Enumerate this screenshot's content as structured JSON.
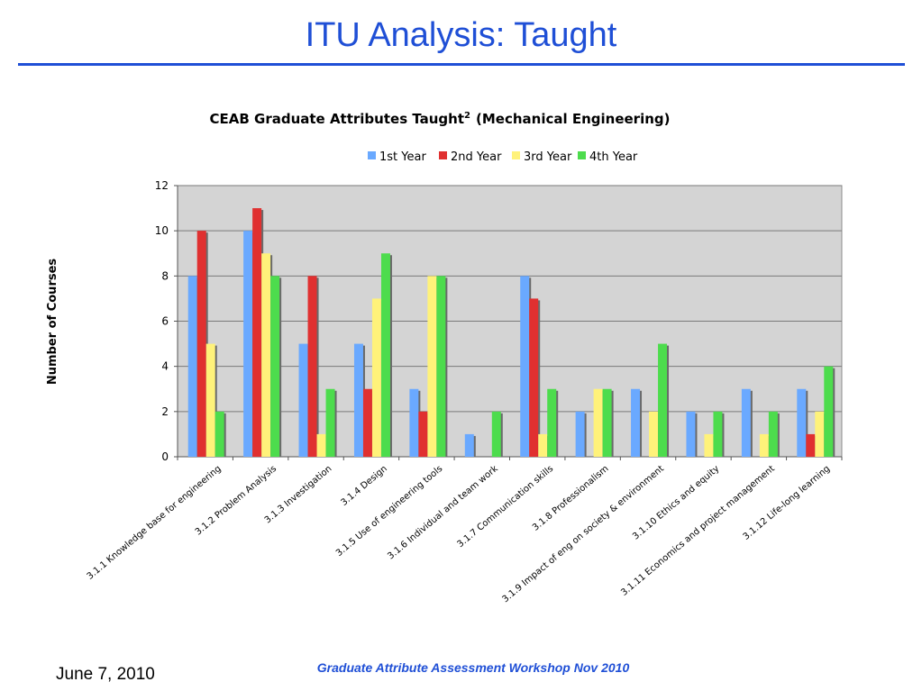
{
  "slide": {
    "title": "ITU Analysis: Taught",
    "footer_date": "June 7, 2010",
    "footer_center": "Graduate Attribute Assessment Workshop Nov 2010"
  },
  "colors": {
    "accent": "#1f4fd6",
    "plot_background": "#d4d4d4",
    "series": [
      "#6aa9ff",
      "#e03030",
      "#fff27a",
      "#4ddc4d"
    ]
  },
  "chart_data": {
    "type": "bar",
    "title": "CEAB Graduate Attributes Taught",
    "title_superscript": "2",
    "title_suffix": "(Mechanical Engineering)",
    "xlabel": "",
    "ylabel": "Number of Courses",
    "ylim": [
      0,
      12
    ],
    "yticks": [
      0,
      2,
      4,
      6,
      8,
      10,
      12
    ],
    "grid": true,
    "legend_position": "top",
    "categories": [
      "3.1.1 Knowledge base for engineering",
      "3.1.2 Problem Analysis",
      "3.1.3 Investigation",
      "3.1.4 Design",
      "3.1.5 Use of engineering tools",
      "3.1.6 Individual and team work",
      "3.1.7 Communication skills",
      "3.1.8 Professionalism",
      "3.1.9 Impact of eng on society & environment",
      "3.1.10 Ethics and equity",
      "3.1.11 Economics and project management",
      "3.1.12 Life-long learning"
    ],
    "series": [
      {
        "name": "1st Year",
        "values": [
          8,
          10,
          5,
          5,
          3,
          1,
          8,
          2,
          3,
          2,
          3,
          3
        ]
      },
      {
        "name": "2nd Year",
        "values": [
          10,
          11,
          8,
          3,
          2,
          0,
          7,
          0,
          0,
          0,
          0,
          1
        ]
      },
      {
        "name": "3rd Year",
        "values": [
          5,
          9,
          1,
          7,
          8,
          0,
          1,
          3,
          2,
          1,
          1,
          2
        ]
      },
      {
        "name": "4th Year",
        "values": [
          2,
          8,
          3,
          9,
          8,
          2,
          3,
          3,
          5,
          2,
          2,
          4
        ]
      }
    ]
  }
}
